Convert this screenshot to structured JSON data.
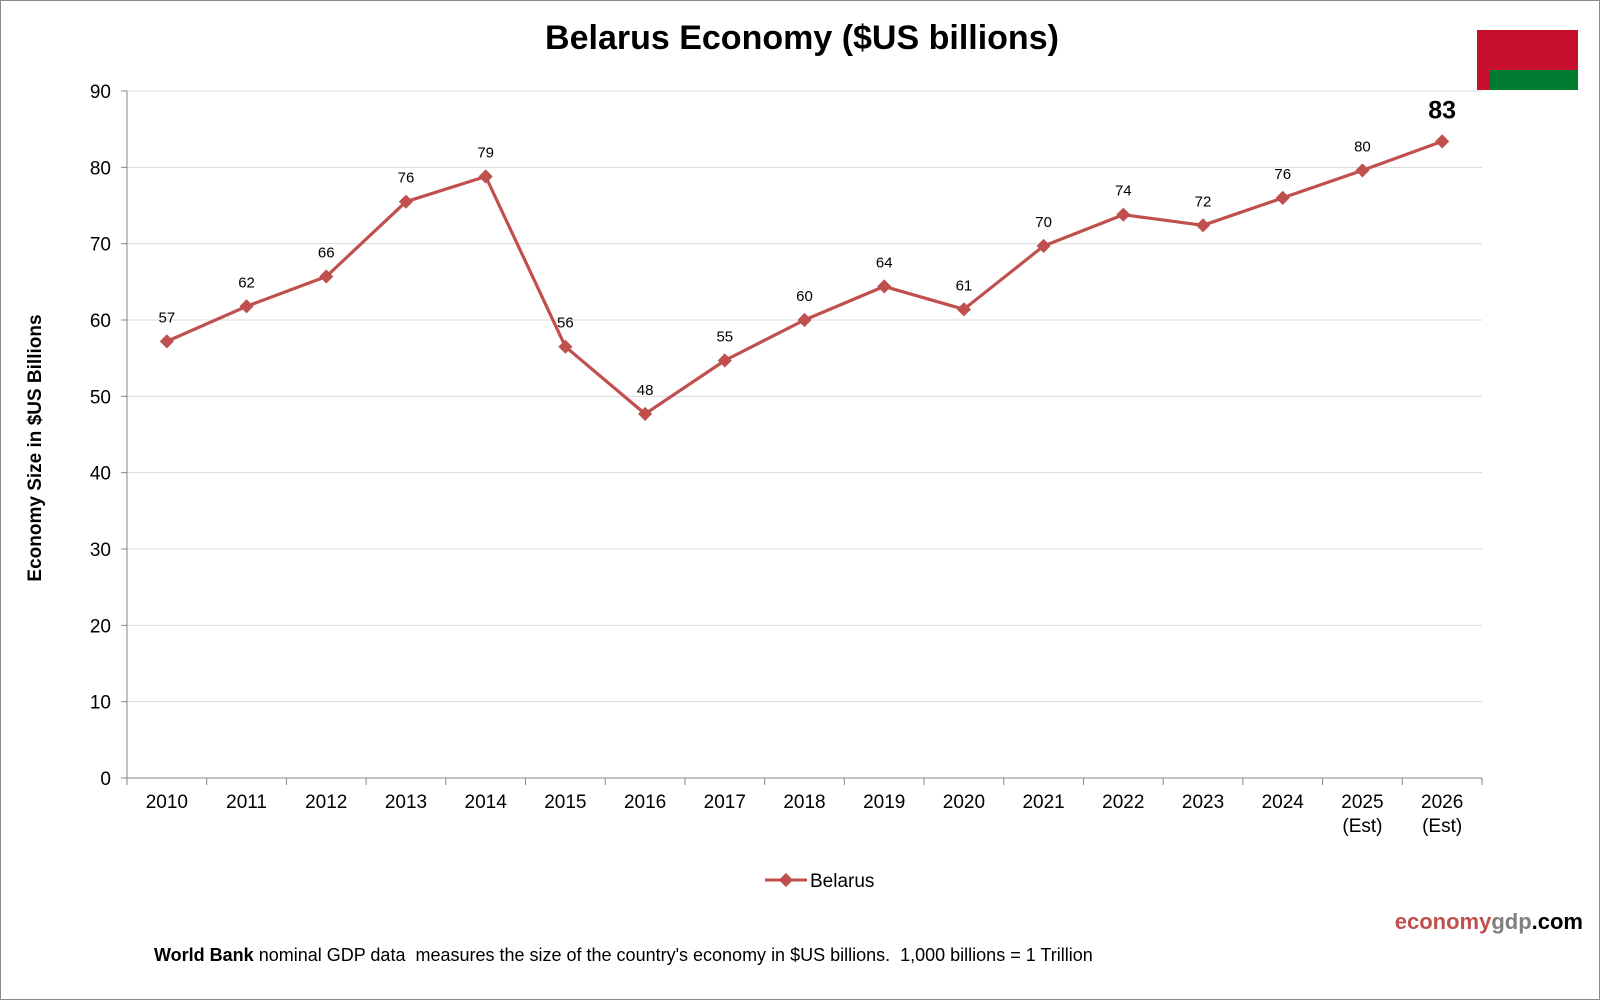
{
  "chart_data": {
    "type": "line",
    "title": "Belarus Economy ($US billions)",
    "ylabel": "Economy Size in $US Billions",
    "xlabel": "",
    "ylim": [
      0,
      90
    ],
    "yticks": [
      0,
      10,
      20,
      30,
      40,
      50,
      60,
      70,
      80,
      90
    ],
    "grid": true,
    "legend_placement": "bottom-center",
    "categories": [
      [
        "2010"
      ],
      [
        "2011"
      ],
      [
        "2012"
      ],
      [
        "2013"
      ],
      [
        "2014"
      ],
      [
        "2015"
      ],
      [
        "2016"
      ],
      [
        "2017"
      ],
      [
        "2018"
      ],
      [
        "2019"
      ],
      [
        "2020"
      ],
      [
        "2021"
      ],
      [
        "2022"
      ],
      [
        "2023"
      ],
      [
        "2024"
      ],
      [
        "2025",
        "(Est)"
      ],
      [
        "2026",
        "(Est)"
      ]
    ],
    "series": [
      {
        "name": "Belarus",
        "color": "#c0504d",
        "values": [
          57.2,
          61.8,
          65.7,
          75.5,
          78.8,
          56.5,
          47.7,
          54.7,
          60.0,
          64.4,
          61.4,
          69.7,
          73.8,
          72.4,
          76.0,
          79.6,
          83.4
        ],
        "labels": [
          "57",
          "62",
          "66",
          "76",
          "79",
          "56",
          "48",
          "55",
          "60",
          "64",
          "61",
          "70",
          "74",
          "72",
          "76",
          "80",
          "83"
        ]
      }
    ],
    "emphasized_label_index": 16
  },
  "flag": {
    "red": "#c8102e",
    "green": "#007c30",
    "ornament": "#c8102e"
  },
  "brand": {
    "part1": "economy",
    "part2": "gdp",
    "part3": ".com",
    "color1": "#c0504d",
    "color2": "#7f7f7f",
    "color3": "#000000"
  },
  "footnote": {
    "bold": "World Bank",
    "rest": " nominal GDP data  measures the size of the country's economy in $US billions.  1,000 billions = 1 Trillion"
  }
}
